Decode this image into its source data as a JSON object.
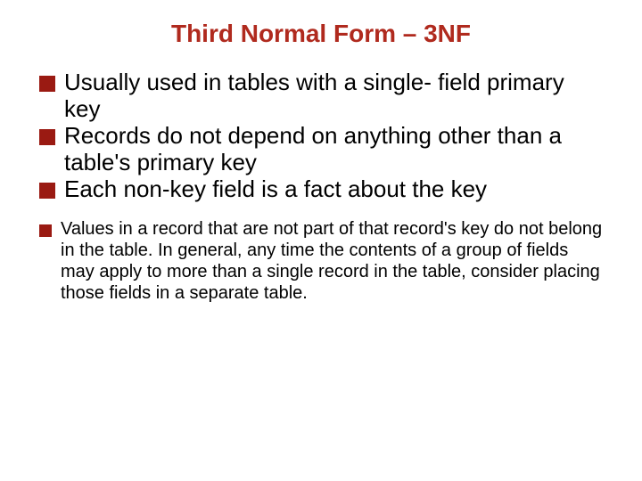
{
  "title": {
    "text": "Third Normal Form – 3NF",
    "color": "#b02a1e",
    "fontsize": 28
  },
  "bullet_marker": {
    "large": {
      "size": 18,
      "color": "#9a1a12"
    },
    "small": {
      "size": 14,
      "color": "#9a1a12"
    }
  },
  "main_bullets": {
    "fontsize": 26,
    "line_height": 1.15,
    "items": [
      "Usually used in tables with a single- field primary key",
      "Records do not depend on anything other than a table's primary key",
      "Each non-key field is a fact about the key"
    ]
  },
  "sub_bullets": {
    "fontsize": 20,
    "line_height": 1.2,
    "items": [
      "Values in a record that are not part of that record's key do not belong in the table. In general, any time the contents of a group of fields may apply to more than a single record in the table, consider placing those fields in a separate table."
    ]
  }
}
